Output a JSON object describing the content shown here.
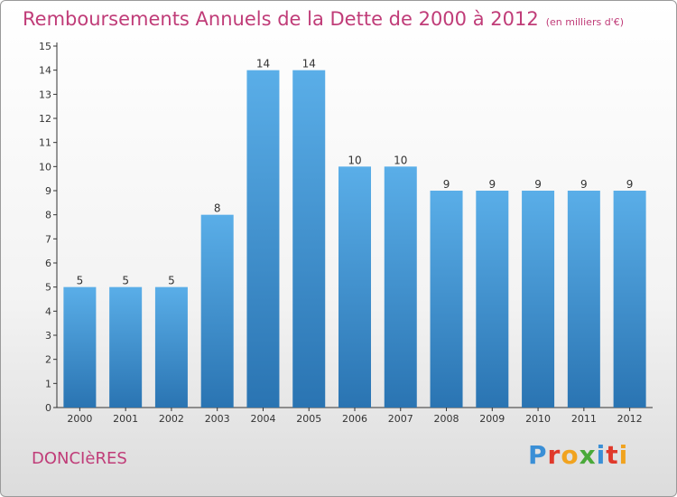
{
  "title": "Remboursements Annuels de la Dette de 2000 à 2012",
  "unit": "(en milliers d'€)",
  "commune": "DONCIèRES",
  "logo": {
    "letters": [
      "P",
      "r",
      "o",
      "x",
      "i",
      "t",
      "i"
    ],
    "colors": [
      "#3a8fd6",
      "#e0392b",
      "#f1a31f",
      "#4aa93a",
      "#3a8fd6",
      "#e0392b",
      "#f1a31f"
    ]
  },
  "colors": {
    "bar": "#4d9fde",
    "bar_dark": "#2a74b2",
    "title": "#c03c78"
  },
  "chart_data": {
    "type": "bar",
    "categories": [
      "2000",
      "2001",
      "2002",
      "2003",
      "2004",
      "2005",
      "2006",
      "2007",
      "2008",
      "2009",
      "2010",
      "2011",
      "2012"
    ],
    "values": [
      5,
      5,
      5,
      8,
      14,
      14,
      10,
      10,
      9,
      9,
      9,
      9,
      9
    ],
    "ylim": [
      0,
      15
    ],
    "yticks": [
      0,
      1,
      2,
      3,
      4,
      5,
      6,
      7,
      8,
      9,
      10,
      11,
      12,
      13,
      14,
      15
    ],
    "grid": false,
    "data_labels": true
  }
}
